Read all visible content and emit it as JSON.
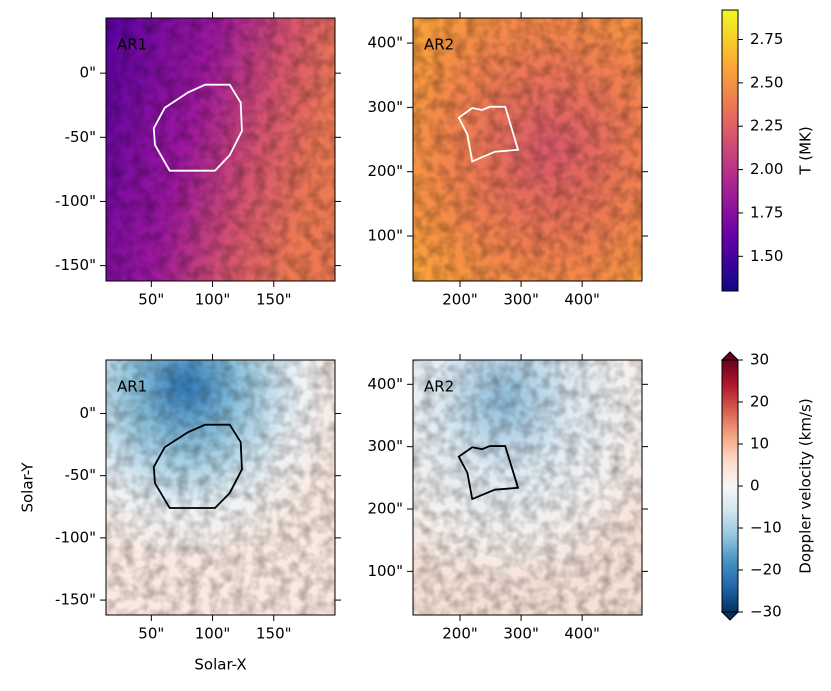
{
  "chart_data": [
    {
      "type": "heatmap",
      "label": "AR1",
      "xlim": [
        13,
        200
      ],
      "ylim": [
        -162,
        43
      ],
      "xticks": [
        {
          "value": 50,
          "label": "50\""
        },
        {
          "value": 100,
          "label": "100\""
        },
        {
          "value": 150,
          "label": "150\""
        }
      ],
      "yticks": [
        {
          "value": 0,
          "label": "0\""
        },
        {
          "value": -50,
          "label": "-50\""
        },
        {
          "value": -100,
          "label": "-100\""
        },
        {
          "value": -150,
          "label": "-150\""
        }
      ],
      "contour": {
        "x": [
          52,
          61,
          80,
          94,
          114,
          123,
          124,
          114,
          102,
          65,
          53
        ],
        "y": [
          -43,
          -27,
          -15,
          -9,
          -9,
          -23,
          -45,
          -64,
          -76,
          -76,
          -56
        ]
      },
      "contour_color": "#ffffff"
    },
    {
      "type": "heatmap",
      "label": "AR2",
      "xlim": [
        123,
        498
      ],
      "ylim": [
        30,
        439
      ],
      "xticks": [
        {
          "value": 200,
          "label": "200\""
        },
        {
          "value": 300,
          "label": "300\""
        },
        {
          "value": 400,
          "label": "400\""
        }
      ],
      "yticks": [
        {
          "value": 100,
          "label": "100\""
        },
        {
          "value": 200,
          "label": "200\""
        },
        {
          "value": 300,
          "label": "300\""
        },
        {
          "value": 400,
          "label": "400\""
        }
      ],
      "contour": {
        "x": [
          198,
          220,
          236,
          249,
          274,
          295,
          257,
          220,
          212
        ],
        "y": [
          284,
          299,
          296,
          301,
          301,
          234,
          231,
          216,
          258
        ]
      },
      "contour_color": "#ffffff"
    },
    {
      "type": "heatmap",
      "label": "AR1",
      "xlabel": "Solar-X",
      "ylabel": "Solar-Y",
      "xlim": [
        13,
        200
      ],
      "ylim": [
        -162,
        43
      ],
      "xticks": [
        {
          "value": 50,
          "label": "50\""
        },
        {
          "value": 100,
          "label": "100\""
        },
        {
          "value": 150,
          "label": "150\""
        }
      ],
      "yticks": [
        {
          "value": 0,
          "label": "0\""
        },
        {
          "value": -50,
          "label": "-50\""
        },
        {
          "value": -100,
          "label": "-100\""
        },
        {
          "value": -150,
          "label": "-150\""
        }
      ],
      "contour": {
        "x": [
          52,
          61,
          80,
          94,
          114,
          123,
          124,
          114,
          102,
          65,
          53
        ],
        "y": [
          -43,
          -27,
          -15,
          -9,
          -9,
          -23,
          -45,
          -64,
          -76,
          -76,
          -56
        ]
      },
      "contour_color": "#000000"
    },
    {
      "type": "heatmap",
      "label": "AR2",
      "xlim": [
        123,
        498
      ],
      "ylim": [
        30,
        439
      ],
      "xticks": [
        {
          "value": 200,
          "label": "200\""
        },
        {
          "value": 300,
          "label": "300\""
        },
        {
          "value": 400,
          "label": "400\""
        }
      ],
      "yticks": [
        {
          "value": 100,
          "label": "100\""
        },
        {
          "value": 200,
          "label": "200\""
        },
        {
          "value": 300,
          "label": "300\""
        },
        {
          "value": 400,
          "label": "400\""
        }
      ],
      "contour": {
        "x": [
          198,
          220,
          236,
          249,
          274,
          295,
          257,
          220,
          212
        ],
        "y": [
          284,
          299,
          296,
          301,
          301,
          234,
          231,
          216,
          258
        ]
      },
      "contour_color": "#000000"
    },
    {
      "type": "colorbar",
      "label": "T (MK)",
      "ylim": [
        1.3,
        2.92
      ],
      "yticks": [
        {
          "value": 1.5,
          "label": "1.50"
        },
        1.75,
        {
          "value": 2,
          "label": "2.00"
        },
        2.25,
        {
          "value": 2.5,
          "label": "2.50"
        },
        2.75
      ],
      "colors": [
        "#0d0887",
        "#6a00a8",
        "#b12a90",
        "#e16462",
        "#fca636",
        "#f0f921"
      ]
    },
    {
      "type": "colorbar",
      "label": "Doppler velocity (km/s)",
      "ylim": [
        -30,
        30
      ],
      "extend": "both",
      "yticks": [
        {
          "value": -30,
          "label": "−30"
        },
        {
          "value": -20,
          "label": "−20"
        },
        {
          "value": -10,
          "label": "−10"
        },
        0,
        10,
        20,
        30
      ],
      "colors": [
        "#053061",
        "#2166ac",
        "#4393c3",
        "#92c5de",
        "#d1e5f0",
        "#f7f7f7",
        "#fddbc7",
        "#f4a582",
        "#d6604d",
        "#b2182b",
        "#67001f"
      ]
    }
  ]
}
